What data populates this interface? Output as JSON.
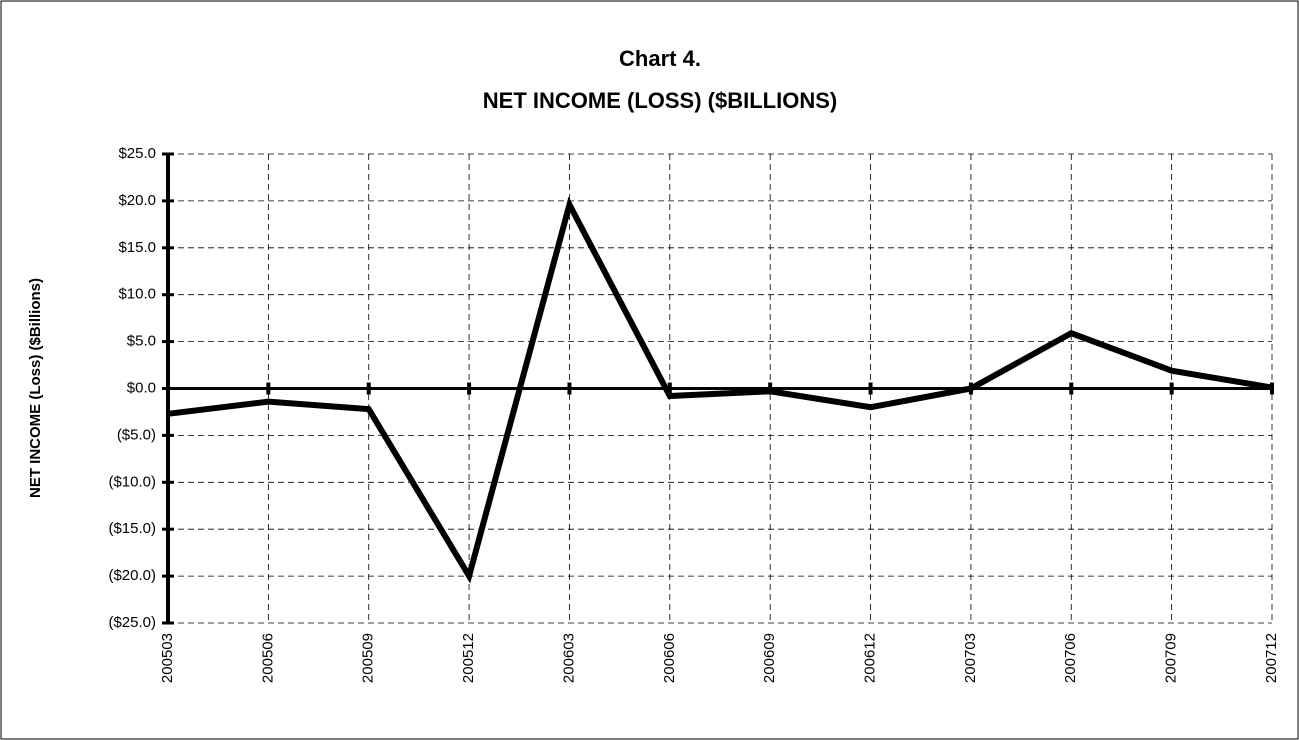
{
  "chart_data": {
    "type": "line",
    "title": "Chart 4.",
    "subtitle": "NET INCOME (LOSS) ($BILLIONS)",
    "y_label": "NET INCOME (Loss) ($Billions)",
    "categories": [
      "200503",
      "200506",
      "200509",
      "200512",
      "200603",
      "200606",
      "200609",
      "200612",
      "200703",
      "200706",
      "200709",
      "200712"
    ],
    "series": [
      {
        "name": "Net Income",
        "color": "#000000",
        "values": [
          -2.7,
          -1.4,
          -2.2,
          -20.0,
          19.6,
          -0.8,
          -0.3,
          -2.0,
          0.0,
          5.9,
          1.9,
          0.1
        ]
      }
    ],
    "ylim": [
      -25,
      25
    ],
    "yticks": [
      {
        "value": 25,
        "label": "$25.0"
      },
      {
        "value": 20,
        "label": "$20.0"
      },
      {
        "value": 15,
        "label": "$15.0"
      },
      {
        "value": 10,
        "label": "$10.0"
      },
      {
        "value": 5,
        "label": "$5.0"
      },
      {
        "value": 0,
        "label": "$0.0"
      },
      {
        "value": -5,
        "label": "($5.0)"
      },
      {
        "value": -10,
        "label": "($10.0)"
      },
      {
        "value": -15,
        "label": "($15.0)"
      },
      {
        "value": -20,
        "label": "($20.0)"
      },
      {
        "value": -25,
        "label": "($25.0)"
      }
    ],
    "grid": true
  }
}
